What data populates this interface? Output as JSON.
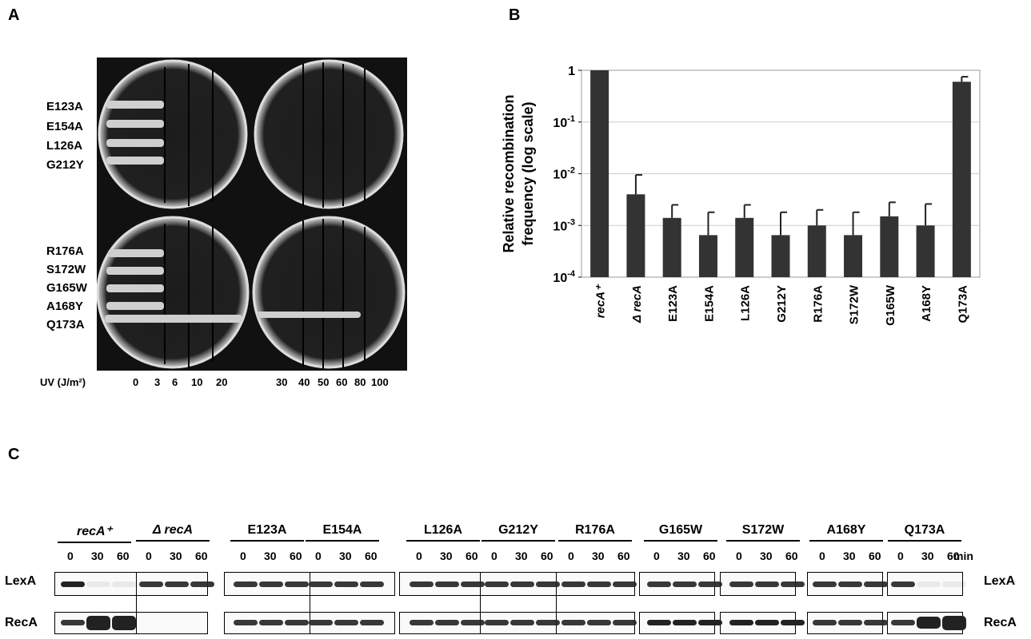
{
  "panels": {
    "a": "A",
    "b": "B",
    "c": "C"
  },
  "panel_a": {
    "plate_labels_top": [
      "E123A",
      "E154A",
      "L126A",
      "G212Y"
    ],
    "plate_labels_bottom": [
      "R176A",
      "S172W",
      "G165W",
      "A168Y",
      "Q173A"
    ],
    "uv_label": "UV (J/m²)",
    "uv_ticks_left": [
      "0",
      "3",
      "6",
      "10",
      "20"
    ],
    "uv_ticks_right": [
      "30",
      "40",
      "50",
      "60",
      "80",
      "100"
    ]
  },
  "chart_data": {
    "type": "bar",
    "title": "",
    "ylabel": "Relative recombination frequency (log scale)",
    "ylabel_lines": [
      "Relative recombination",
      "frequency (log scale)"
    ],
    "yscale": "log",
    "ylim": [
      0.0001,
      1
    ],
    "yticks": [
      {
        "base": "10",
        "exp": "-4",
        "value": 0.0001
      },
      {
        "base": "10",
        "exp": "-3",
        "value": 0.001
      },
      {
        "base": "10",
        "exp": "-2",
        "value": 0.01
      },
      {
        "base": "10",
        "exp": "-1",
        "value": 0.1
      },
      {
        "base": "1",
        "exp": "",
        "value": 1
      }
    ],
    "grid": true,
    "categories": [
      "recA⁺",
      "Δ recA",
      "E123A",
      "E154A",
      "L126A",
      "G212Y",
      "R176A",
      "S172W",
      "G165W",
      "A168Y",
      "Q173A"
    ],
    "values": [
      1,
      0.004,
      0.0014,
      0.00065,
      0.0014,
      0.00065,
      0.001,
      0.00065,
      0.0015,
      0.001,
      0.6
    ],
    "error_upper": [
      1,
      0.0095,
      0.0025,
      0.0018,
      0.0025,
      0.0018,
      0.002,
      0.0018,
      0.0028,
      0.0026,
      0.75
    ],
    "bar_color": "#333333"
  },
  "panel_c": {
    "strains": [
      "recA⁺",
      "Δ recA",
      "E123A",
      "E154A",
      "L126A",
      "G212Y",
      "R176A",
      "G165W",
      "S172W",
      "A168Y",
      "Q173A"
    ],
    "times": [
      "0",
      "30",
      "60"
    ],
    "time_unit": "min",
    "row_labels": [
      "LexA",
      "RecA"
    ]
  }
}
